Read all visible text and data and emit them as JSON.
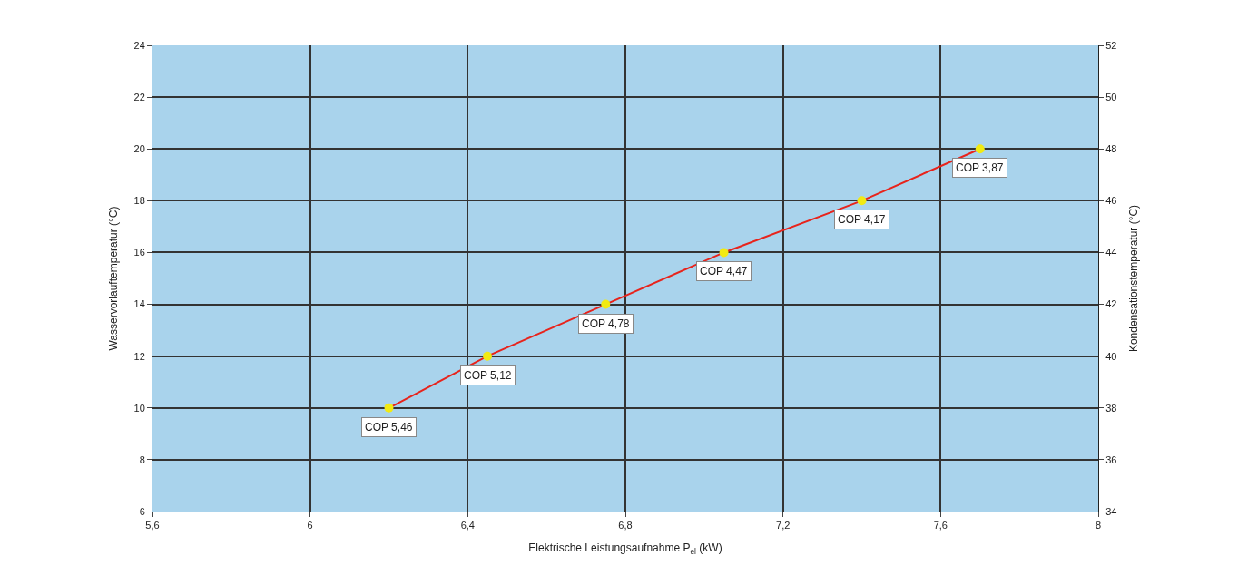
{
  "chart_data": {
    "type": "line",
    "xlabel": "Elektrische Leistungsaufnahme P$_{el}$ (kW)",
    "ylabel": "Wasservorlauftemperatur (°C)",
    "y2label": "Kondensationstemperatur (°C)",
    "x": [
      6.2,
      6.45,
      6.75,
      7.05,
      7.4,
      7.7
    ],
    "series": [
      {
        "color": "#e8231b",
        "colors": [
          "#f2ea12",
          "#f2ea12",
          "#f2ea12",
          "#f2ea12",
          "#f2ea12",
          "#f2ea12"
        ],
        "values": [
          10,
          12,
          14,
          16,
          18,
          20
        ]
      }
    ],
    "marker": "circle",
    "line_style": "solid",
    "xlim": [
      5.6,
      8.0
    ],
    "xticks": [
      {
        "value": 5.6,
        "label": "5,6"
      },
      6,
      {
        "value": 6.4,
        "label": "6,4"
      },
      {
        "value": 6.8,
        "label": "6,8"
      },
      {
        "value": 7.2,
        "label": "7,2"
      },
      {
        "value": 7.6,
        "label": "7,6"
      },
      8
    ],
    "ylim": [
      6,
      24
    ],
    "yticks": [
      6,
      8,
      10,
      12,
      14,
      16,
      18,
      20,
      22,
      24
    ],
    "y2lim": [
      34,
      52
    ],
    "y2ticks": [
      34,
      36,
      38,
      40,
      42,
      44,
      46,
      48,
      50,
      52
    ],
    "grid": true,
    "legend": false,
    "annotations": [
      {
        "text": "COP 5,46",
        "x": 6.2,
        "y": 10
      },
      {
        "text": "COP 5,12",
        "x": 6.45,
        "y": 12
      },
      {
        "text": "COP 4,78",
        "x": 6.75,
        "y": 14
      },
      {
        "text": "COP 4,47",
        "x": 7.05,
        "y": 16
      },
      {
        "text": "COP 4,17",
        "x": 7.4,
        "y": 18
      },
      {
        "text": "COP 3,87",
        "x": 7.7,
        "y": 20
      }
    ]
  }
}
